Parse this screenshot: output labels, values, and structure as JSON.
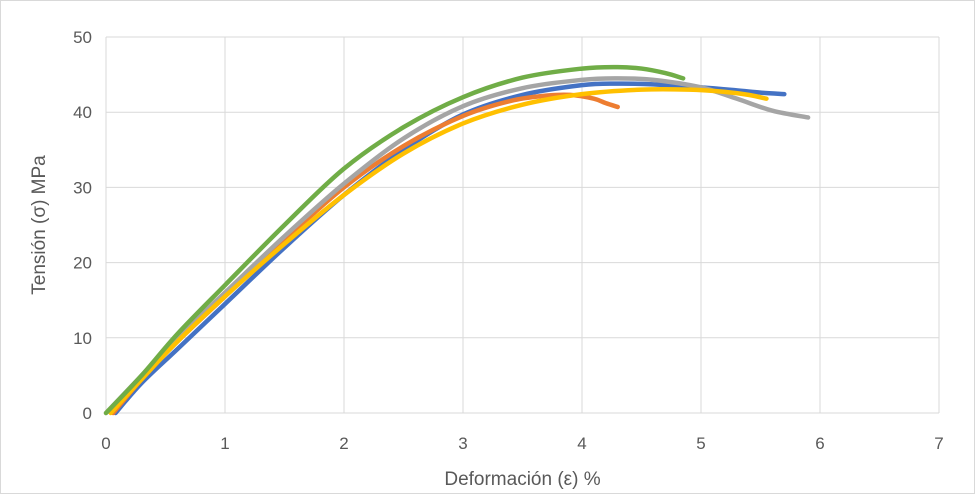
{
  "chart_data": {
    "type": "line",
    "title": "",
    "xlabel": "Deformación (ε)  %",
    "ylabel": "Tensión  (σ)  MPa",
    "xlim": [
      0,
      7
    ],
    "ylim": [
      0,
      50
    ],
    "x_ticks": [
      "0",
      "1",
      "2",
      "3",
      "4",
      "5",
      "6",
      "7"
    ],
    "y_ticks": [
      "0",
      "10",
      "20",
      "30",
      "40",
      "50"
    ],
    "grid": true,
    "legend": "none",
    "series": [
      {
        "color": "#4472C4",
        "x": [
          0.08,
          0.3,
          0.6,
          1.0,
          1.5,
          2.0,
          2.5,
          3.0,
          3.5,
          4.0,
          4.3,
          4.6,
          5.0,
          5.3,
          5.5,
          5.7
        ],
        "y": [
          0,
          4,
          8.5,
          14.5,
          22,
          29,
          35,
          39.7,
          42.3,
          43.6,
          43.8,
          43.7,
          43.3,
          42.9,
          42.6,
          42.4
        ]
      },
      {
        "color": "#ED7D31",
        "x": [
          0.06,
          0.3,
          0.6,
          1.0,
          1.5,
          2.0,
          2.5,
          3.0,
          3.4,
          3.7,
          3.9,
          4.1,
          4.2,
          4.3
        ],
        "y": [
          0,
          4.5,
          9.5,
          15.5,
          23,
          30,
          35.5,
          39.5,
          41.5,
          42.2,
          42.3,
          41.8,
          41.2,
          40.7
        ]
      },
      {
        "color": "#A5A5A5",
        "x": [
          0.0,
          0.3,
          0.6,
          1.0,
          1.5,
          2.0,
          2.5,
          3.0,
          3.5,
          4.0,
          4.3,
          4.6,
          5.0,
          5.3,
          5.6,
          5.9
        ],
        "y": [
          0,
          5,
          10,
          16,
          23.5,
          30.5,
          36.5,
          40.8,
          43.2,
          44.3,
          44.5,
          44.3,
          43.3,
          41.8,
          40.2,
          39.3
        ]
      },
      {
        "color": "#FFC000",
        "x": [
          0.04,
          0.3,
          0.6,
          1.0,
          1.5,
          2.0,
          2.5,
          3.0,
          3.5,
          4.0,
          4.5,
          4.9,
          5.2,
          5.4,
          5.55
        ],
        "y": [
          0,
          4.5,
          9.5,
          15.5,
          22.5,
          29,
          34.5,
          38.5,
          41,
          42.4,
          43,
          43,
          42.7,
          42.3,
          41.8
        ]
      },
      {
        "color": "#70AD47",
        "x": [
          0.0,
          0.3,
          0.6,
          1.0,
          1.5,
          2.0,
          2.5,
          3.0,
          3.5,
          4.0,
          4.3,
          4.5,
          4.7,
          4.85
        ],
        "y": [
          0,
          5,
          10.5,
          17,
          25,
          32.5,
          38,
          42,
          44.6,
          45.8,
          46,
          45.8,
          45.2,
          44.5
        ]
      }
    ]
  }
}
